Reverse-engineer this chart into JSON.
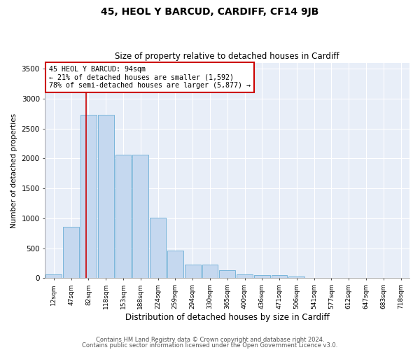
{
  "title1": "45, HEOL Y BARCUD, CARDIFF, CF14 9JB",
  "title2": "Size of property relative to detached houses in Cardiff",
  "xlabel": "Distribution of detached houses by size in Cardiff",
  "ylabel": "Number of detached properties",
  "categories": [
    "12sqm",
    "47sqm",
    "82sqm",
    "118sqm",
    "153sqm",
    "188sqm",
    "224sqm",
    "259sqm",
    "294sqm",
    "330sqm",
    "365sqm",
    "400sqm",
    "436sqm",
    "471sqm",
    "506sqm",
    "541sqm",
    "577sqm",
    "612sqm",
    "647sqm",
    "683sqm",
    "718sqm"
  ],
  "values": [
    60,
    860,
    2730,
    2730,
    2060,
    2060,
    1010,
    460,
    230,
    230,
    130,
    60,
    50,
    50,
    25,
    10,
    5,
    5,
    2,
    1,
    0
  ],
  "bar_color": "#c5d8ef",
  "bar_edgecolor": "#6baed6",
  "background_color": "#e8eef8",
  "fig_background": "#ffffff",
  "red_line_x": 1.87,
  "annotation_line1": "45 HEOL Y BARCUD: 94sqm",
  "annotation_line2": "← 21% of detached houses are smaller (1,592)",
  "annotation_line3": "78% of semi-detached houses are larger (5,877) →",
  "annotation_box_color": "#ffffff",
  "annotation_border_color": "#cc0000",
  "footer1": "Contains HM Land Registry data © Crown copyright and database right 2024.",
  "footer2": "Contains public sector information licensed under the Open Government Licence v3.0.",
  "ylim": [
    0,
    3600
  ],
  "yticks": [
    0,
    500,
    1000,
    1500,
    2000,
    2500,
    3000,
    3500
  ]
}
